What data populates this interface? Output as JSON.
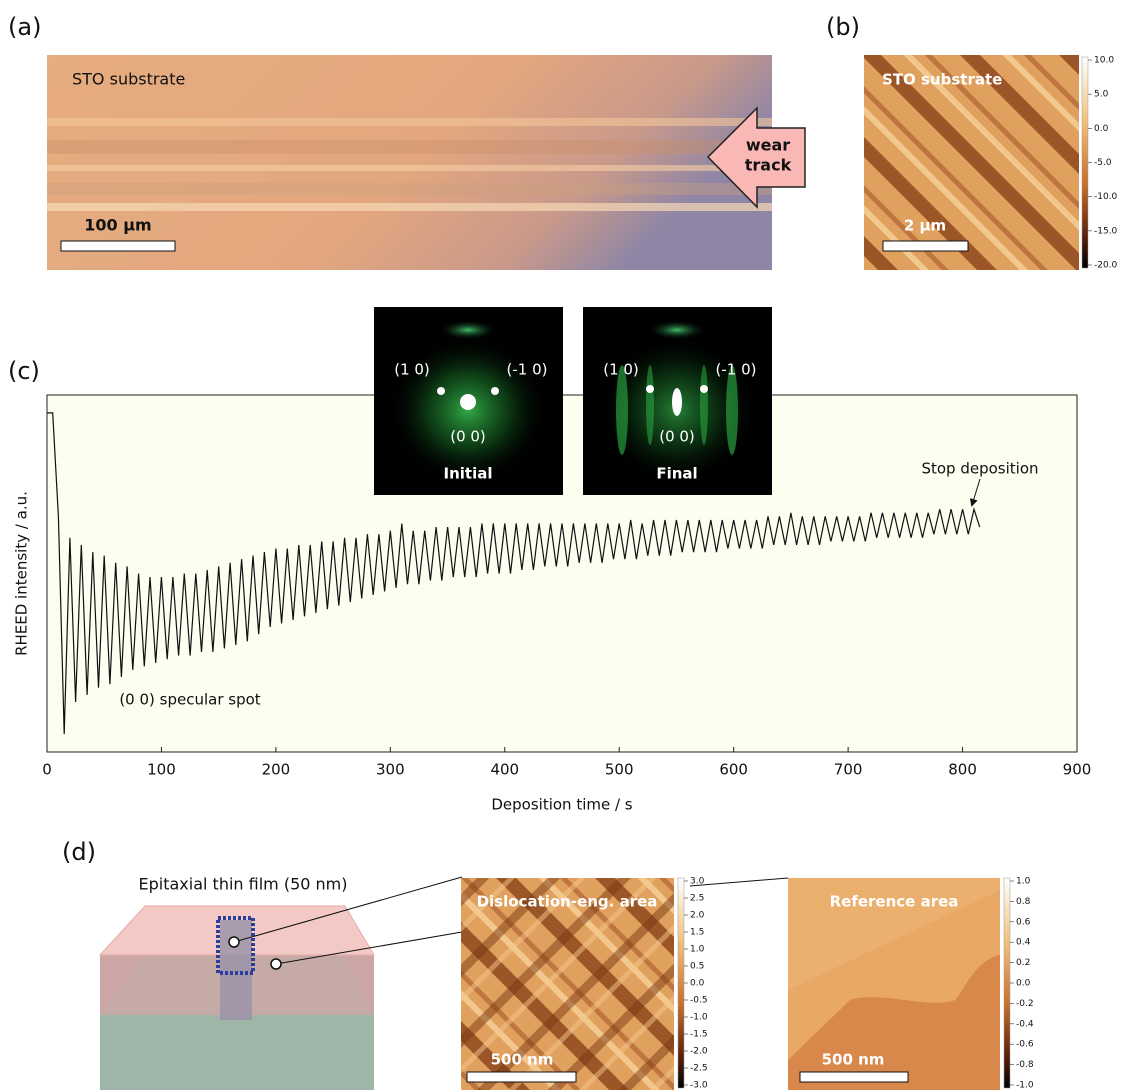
{
  "panels": {
    "a": {
      "label": "(a)",
      "caption": "STO substrate",
      "scale": "100 µm",
      "arrow": [
        "wear",
        "track"
      ]
    },
    "b": {
      "label": "(b)",
      "caption": "STO substrate",
      "scale": "2 µm",
      "colorbar": [
        "10.0",
        "5.0",
        "0.0",
        "-5.0",
        "-10.0",
        "-15.0",
        "-20.0"
      ]
    },
    "c": {
      "label": "(c)",
      "insets": [
        {
          "spots": [
            "(1 0)",
            "(-1 0)",
            "(0 0)"
          ],
          "caption": "Initial"
        },
        {
          "spots": [
            "(1 0)",
            "(-1 0)",
            "(0 0)"
          ],
          "caption": "Final"
        }
      ]
    },
    "d": {
      "label": "(d)",
      "schematic": "Epitaxial thin film (50 nm)",
      "images": [
        {
          "caption": "Dislocation-eng. area",
          "scale": "500 nm",
          "colorbar": [
            "3.0",
            "2.5",
            "2.0",
            "1.5",
            "1.0",
            "0.5",
            "0.0",
            "-0.5",
            "-1.0",
            "-1.5",
            "-2.0",
            "-2.5",
            "-3.0"
          ]
        },
        {
          "caption": "Reference area",
          "scale": "500 nm",
          "colorbar": [
            "1.0",
            "0.8",
            "0.6",
            "0.4",
            "0.2",
            "0.0",
            "-0.2",
            "-0.4",
            "-0.6",
            "-0.8",
            "-1.0"
          ]
        }
      ]
    }
  },
  "chart_data": {
    "type": "line",
    "x_label": "Deposition time / s",
    "y_label": "RHEED intensity / a.u.",
    "annotations": [
      "Stop deposition",
      "(0 0) specular spot"
    ],
    "xlim": [
      0,
      900
    ],
    "xticks": [
      0,
      100,
      200,
      300,
      400,
      500,
      600,
      700,
      800,
      900
    ],
    "ylim": [
      0,
      100
    ],
    "x": [
      0,
      5,
      10,
      15,
      20,
      25,
      30,
      35,
      40,
      45,
      50,
      55,
      60,
      65,
      70,
      75,
      80,
      85,
      90,
      95,
      100,
      105,
      110,
      115,
      120,
      125,
      130,
      135,
      140,
      145,
      150,
      155,
      160,
      165,
      170,
      175,
      180,
      185,
      190,
      195,
      200,
      205,
      210,
      215,
      220,
      225,
      230,
      235,
      240,
      245,
      250,
      255,
      260,
      265,
      270,
      275,
      280,
      285,
      290,
      295,
      300,
      305,
      310,
      315,
      320,
      325,
      330,
      335,
      340,
      345,
      350,
      355,
      360,
      365,
      370,
      375,
      380,
      385,
      390,
      395,
      400,
      405,
      410,
      415,
      420,
      425,
      430,
      435,
      440,
      445,
      450,
      455,
      460,
      465,
      470,
      475,
      480,
      485,
      490,
      495,
      500,
      505,
      510,
      515,
      520,
      525,
      530,
      535,
      540,
      545,
      550,
      555,
      560,
      565,
      570,
      575,
      580,
      585,
      590,
      595,
      600,
      605,
      610,
      615,
      620,
      625,
      630,
      635,
      640,
      645,
      650,
      655,
      660,
      665,
      670,
      675,
      680,
      685,
      690,
      695,
      700,
      705,
      710,
      715,
      720,
      725,
      730,
      735,
      740,
      745,
      750,
      755,
      760,
      765,
      770,
      775,
      780,
      785,
      790,
      795,
      800,
      805,
      810,
      815
    ],
    "series": [
      {
        "color": "#111111",
        "values": [
          95,
          95,
          66,
          5,
          60,
          14,
          58,
          16,
          56,
          18,
          55,
          19,
          53,
          21,
          52,
          23,
          50,
          24,
          49,
          25,
          49,
          26,
          49,
          27,
          50,
          27,
          50,
          28,
          51,
          28,
          52,
          29,
          53,
          30,
          54,
          31,
          55,
          33,
          56,
          35,
          57,
          36,
          57,
          37,
          58,
          38,
          58,
          39,
          59,
          40,
          59,
          41,
          60,
          42,
          60,
          43,
          61,
          44,
          61,
          45,
          62,
          46,
          64,
          47,
          62,
          47,
          62,
          48,
          63,
          48,
          63,
          49,
          63,
          49,
          63,
          49,
          64,
          50,
          64,
          50,
          64,
          50,
          64,
          51,
          64,
          51,
          64,
          52,
          64,
          52,
          64,
          52,
          64,
          53,
          64,
          53,
          64,
          53,
          64,
          54,
          64,
          54,
          65,
          54,
          64,
          55,
          65,
          55,
          65,
          55,
          65,
          56,
          65,
          56,
          65,
          56,
          65,
          56,
          65,
          57,
          65,
          57,
          65,
          57,
          65,
          57,
          66,
          58,
          66,
          58,
          67,
          58,
          66,
          58,
          66,
          58,
          66,
          59,
          66,
          59,
          66,
          59,
          66,
          59,
          67,
          60,
          67,
          60,
          67,
          60,
          67,
          60,
          67,
          60,
          67,
          61,
          68,
          61,
          68,
          61,
          68,
          61,
          68,
          63
        ]
      }
    ]
  }
}
